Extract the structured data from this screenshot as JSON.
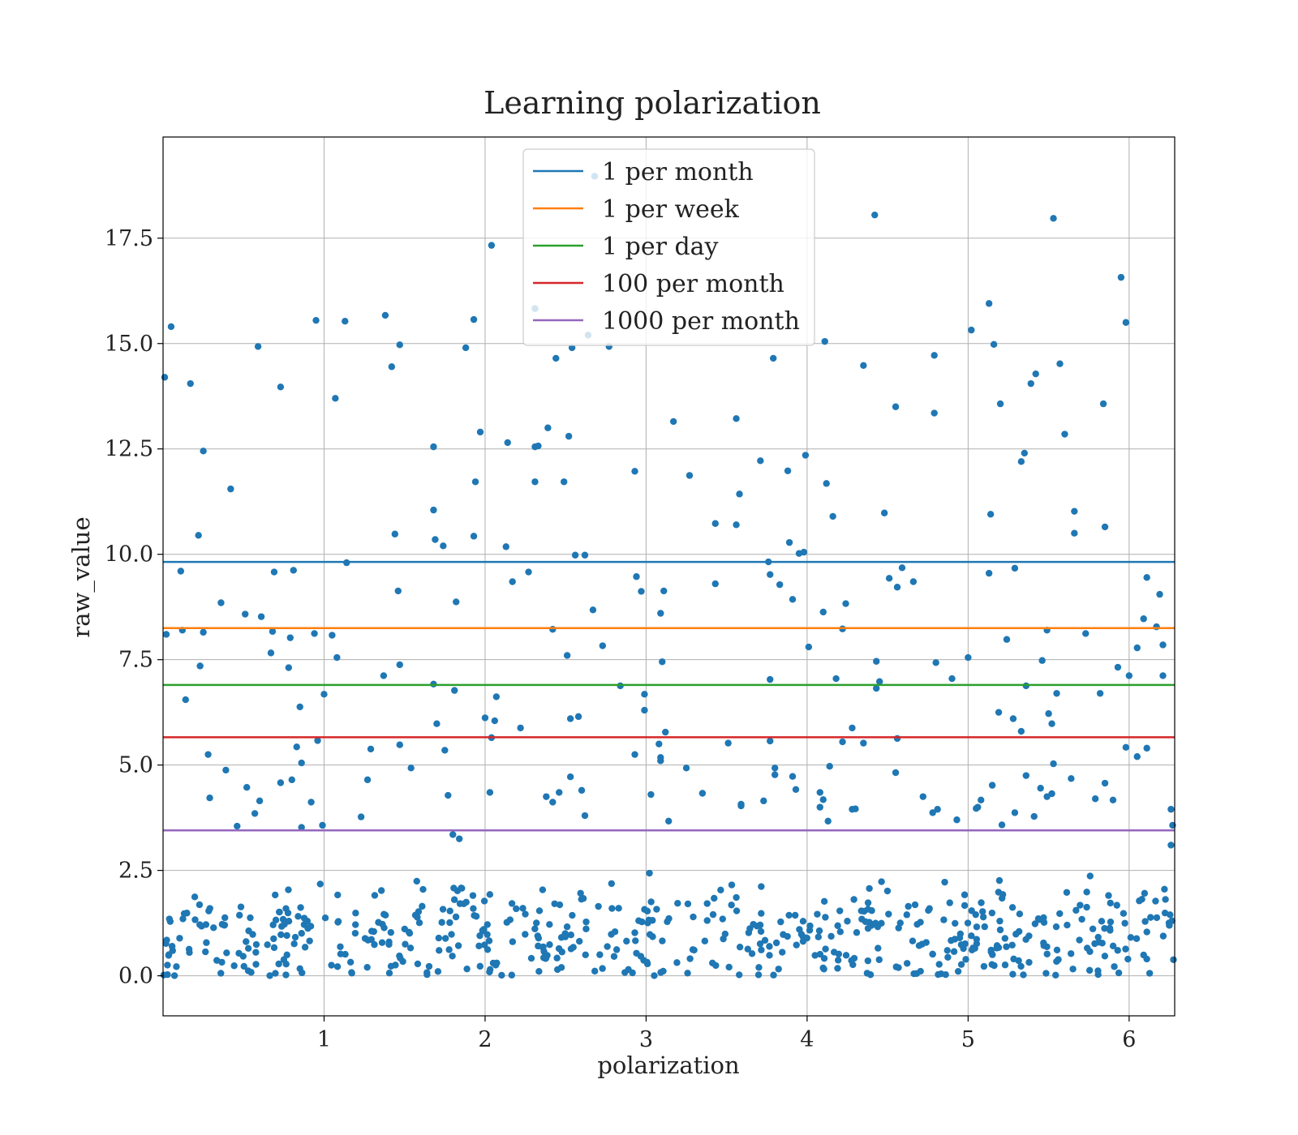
{
  "chart_data": {
    "type": "scatter",
    "title": "Learning polarization",
    "xlabel": "polarization",
    "ylabel": "raw_value",
    "xlim": [
      0,
      6.283
    ],
    "ylim": [
      -0.95,
      19.9
    ],
    "xticks": [
      1,
      2,
      3,
      4,
      5,
      6
    ],
    "yticks": [
      0.0,
      2.5,
      5.0,
      7.5,
      10.0,
      12.5,
      15.0,
      17.5
    ],
    "xtick_labels": [
      "1",
      "2",
      "3",
      "4",
      "5",
      "6"
    ],
    "ytick_labels": [
      "0.0",
      "2.5",
      "5.0",
      "7.5",
      "10.0",
      "12.5",
      "15.0",
      "17.5"
    ],
    "grid": true,
    "legend_position": "top-center",
    "marker_color": "#1f77b4",
    "hlines": [
      {
        "name": "1 per month",
        "y": 9.82,
        "color": "#1f77b4"
      },
      {
        "name": "1 per week",
        "y": 8.25,
        "color": "#ff7f0e"
      },
      {
        "name": "1 per day",
        "y": 6.9,
        "color": "#2ca02c"
      },
      {
        "name": "100 per month",
        "y": 5.66,
        "color": "#d62728"
      },
      {
        "name": "1000 per month",
        "y": 3.45,
        "color": "#9467bd"
      }
    ],
    "points": [
      [
        0.01,
        14.2
      ],
      [
        0.05,
        15.4
      ],
      [
        0.17,
        14.05
      ],
      [
        0.25,
        12.45
      ],
      [
        0.42,
        11.55
      ],
      [
        0.59,
        14.93
      ],
      [
        0.73,
        13.97
      ],
      [
        0.95,
        15.55
      ],
      [
        1.07,
        13.7
      ],
      [
        1.13,
        15.53
      ],
      [
        1.38,
        15.67
      ],
      [
        1.42,
        14.45
      ],
      [
        1.47,
        14.97
      ],
      [
        1.68,
        12.55
      ],
      [
        1.68,
        11.05
      ],
      [
        1.74,
        10.2
      ],
      [
        1.88,
        14.9
      ],
      [
        1.93,
        15.57
      ],
      [
        1.94,
        11.72
      ],
      [
        1.97,
        12.9
      ],
      [
        2.04,
        17.33
      ],
      [
        2.14,
        12.65
      ],
      [
        2.31,
        12.55
      ],
      [
        2.33,
        12.57
      ],
      [
        2.31,
        11.72
      ],
      [
        2.39,
        13.0
      ],
      [
        2.44,
        14.65
      ],
      [
        2.49,
        11.72
      ],
      [
        2.52,
        12.8
      ],
      [
        2.54,
        14.9
      ],
      [
        2.68,
        18.97
      ],
      [
        2.77,
        14.93
      ],
      [
        2.64,
        15.2
      ],
      [
        2.31,
        15.83
      ],
      [
        2.93,
        11.97
      ],
      [
        3.17,
        13.15
      ],
      [
        3.27,
        11.87
      ],
      [
        3.43,
        10.73
      ],
      [
        3.56,
        13.22
      ],
      [
        3.58,
        11.43
      ],
      [
        3.56,
        10.7
      ],
      [
        3.71,
        12.22
      ],
      [
        3.79,
        14.65
      ],
      [
        3.88,
        11.98
      ],
      [
        3.99,
        12.35
      ],
      [
        4.11,
        15.05
      ],
      [
        4.12,
        11.68
      ],
      [
        4.16,
        10.9
      ],
      [
        4.35,
        14.48
      ],
      [
        4.42,
        18.05
      ],
      [
        4.48,
        10.98
      ],
      [
        4.55,
        13.5
      ],
      [
        4.79,
        14.72
      ],
      [
        4.79,
        13.35
      ],
      [
        5.02,
        15.32
      ],
      [
        5.13,
        15.95
      ],
      [
        5.14,
        10.95
      ],
      [
        5.16,
        14.98
      ],
      [
        5.2,
        13.57
      ],
      [
        5.33,
        12.2
      ],
      [
        5.35,
        12.4
      ],
      [
        5.39,
        14.05
      ],
      [
        5.42,
        14.28
      ],
      [
        5.53,
        17.97
      ],
      [
        5.57,
        14.52
      ],
      [
        5.6,
        12.85
      ],
      [
        5.66,
        11.02
      ],
      [
        5.66,
        10.5
      ],
      [
        5.84,
        13.57
      ],
      [
        5.85,
        10.65
      ],
      [
        5.95,
        16.57
      ],
      [
        5.98,
        15.5
      ],
      [
        0.02,
        8.1
      ],
      [
        0.11,
        9.6
      ],
      [
        0.12,
        8.2
      ],
      [
        0.14,
        6.55
      ],
      [
        0.22,
        10.45
      ],
      [
        0.25,
        8.15
      ],
      [
        0.23,
        7.35
      ],
      [
        0.36,
        8.85
      ],
      [
        0.51,
        8.58
      ],
      [
        0.61,
        8.52
      ],
      [
        0.67,
        7.66
      ],
      [
        0.68,
        8.17
      ],
      [
        0.69,
        9.58
      ],
      [
        0.78,
        7.31
      ],
      [
        0.79,
        8.02
      ],
      [
        0.81,
        9.62
      ],
      [
        0.94,
        8.12
      ],
      [
        1.05,
        8.08
      ],
      [
        1.08,
        7.55
      ],
      [
        1.14,
        9.8
      ],
      [
        1.0,
        6.68
      ],
      [
        1.37,
        7.12
      ],
      [
        1.46,
        9.13
      ],
      [
        1.47,
        7.38
      ],
      [
        1.44,
        10.48
      ],
      [
        1.68,
        6.92
      ],
      [
        1.69,
        10.35
      ],
      [
        1.82,
        8.87
      ],
      [
        1.81,
        6.77
      ],
      [
        1.93,
        10.43
      ],
      [
        2.13,
        10.18
      ],
      [
        2.17,
        9.35
      ],
      [
        2.27,
        9.58
      ],
      [
        2.42,
        8.22
      ],
      [
        2.51,
        7.6
      ],
      [
        2.56,
        9.98
      ],
      [
        2.62,
        9.98
      ],
      [
        2.67,
        8.68
      ],
      [
        2.73,
        7.83
      ],
      [
        2.84,
        6.88
      ],
      [
        2.94,
        9.47
      ],
      [
        2.97,
        9.12
      ],
      [
        3.09,
        8.6
      ],
      [
        3.1,
        7.45
      ],
      [
        3.11,
        9.13
      ],
      [
        3.43,
        9.3
      ],
      [
        3.76,
        9.82
      ],
      [
        3.77,
        9.52
      ],
      [
        3.83,
        9.28
      ],
      [
        3.77,
        7.03
      ],
      [
        3.89,
        10.28
      ],
      [
        3.91,
        8.93
      ],
      [
        3.95,
        10.02
      ],
      [
        3.98,
        10.05
      ],
      [
        4.01,
        7.8
      ],
      [
        4.1,
        8.63
      ],
      [
        4.18,
        7.05
      ],
      [
        4.22,
        8.23
      ],
      [
        4.24,
        8.83
      ],
      [
        4.43,
        7.46
      ],
      [
        4.43,
        6.82
      ],
      [
        4.45,
        6.98
      ],
      [
        4.51,
        9.43
      ],
      [
        4.56,
        9.22
      ],
      [
        4.59,
        9.68
      ],
      [
        4.66,
        9.35
      ],
      [
        4.8,
        7.43
      ],
      [
        4.9,
        7.05
      ],
      [
        5.0,
        7.55
      ],
      [
        5.13,
        9.55
      ],
      [
        5.24,
        7.98
      ],
      [
        5.29,
        9.67
      ],
      [
        5.36,
        6.88
      ],
      [
        5.46,
        7.48
      ],
      [
        5.49,
        8.2
      ],
      [
        5.55,
        6.7
      ],
      [
        5.73,
        8.12
      ],
      [
        5.82,
        6.7
      ],
      [
        5.93,
        7.32
      ],
      [
        6.0,
        7.12
      ],
      [
        6.05,
        7.78
      ],
      [
        6.09,
        8.47
      ],
      [
        6.11,
        9.45
      ],
      [
        6.17,
        8.28
      ],
      [
        6.19,
        9.05
      ],
      [
        6.21,
        7.85
      ],
      [
        6.21,
        7.12
      ],
      [
        0.28,
        5.25
      ],
      [
        0.29,
        4.22
      ],
      [
        0.39,
        4.88
      ],
      [
        0.46,
        3.55
      ],
      [
        0.52,
        4.47
      ],
      [
        0.57,
        3.85
      ],
      [
        0.6,
        4.15
      ],
      [
        0.73,
        4.58
      ],
      [
        0.8,
        4.65
      ],
      [
        0.83,
        5.43
      ],
      [
        0.85,
        6.38
      ],
      [
        0.86,
        5.05
      ],
      [
        0.86,
        3.52
      ],
      [
        0.92,
        4.12
      ],
      [
        0.96,
        5.58
      ],
      [
        0.99,
        3.57
      ],
      [
        1.23,
        3.77
      ],
      [
        1.27,
        4.65
      ],
      [
        1.29,
        5.38
      ],
      [
        1.47,
        5.48
      ],
      [
        1.54,
        4.93
      ],
      [
        1.7,
        5.98
      ],
      [
        1.75,
        5.35
      ],
      [
        1.77,
        4.28
      ],
      [
        1.8,
        3.35
      ],
      [
        1.84,
        3.25
      ],
      [
        2.0,
        6.12
      ],
      [
        2.04,
        5.65
      ],
      [
        2.06,
        6.05
      ],
      [
        2.07,
        6.62
      ],
      [
        2.03,
        4.35
      ],
      [
        2.22,
        5.88
      ],
      [
        2.38,
        4.25
      ],
      [
        2.42,
        4.12
      ],
      [
        2.46,
        4.35
      ],
      [
        2.53,
        6.1
      ],
      [
        2.58,
        6.15
      ],
      [
        2.53,
        4.72
      ],
      [
        2.6,
        4.4
      ],
      [
        2.62,
        3.8
      ],
      [
        2.93,
        5.25
      ],
      [
        2.99,
        6.68
      ],
      [
        2.99,
        6.3
      ],
      [
        3.03,
        4.3
      ],
      [
        3.08,
        5.5
      ],
      [
        3.09,
        5.1
      ],
      [
        3.09,
        5.18
      ],
      [
        3.12,
        5.78
      ],
      [
        3.14,
        3.67
      ],
      [
        3.25,
        4.93
      ],
      [
        3.35,
        4.33
      ],
      [
        3.51,
        5.52
      ],
      [
        3.59,
        4.03
      ],
      [
        3.59,
        4.07
      ],
      [
        3.73,
        4.15
      ],
      [
        3.77,
        5.57
      ],
      [
        3.8,
        4.93
      ],
      [
        3.8,
        4.77
      ],
      [
        3.91,
        4.73
      ],
      [
        3.93,
        4.42
      ],
      [
        4.14,
        4.97
      ],
      [
        4.08,
        4.35
      ],
      [
        4.1,
        4.18
      ],
      [
        4.08,
        4.0
      ],
      [
        4.13,
        3.67
      ],
      [
        4.22,
        5.55
      ],
      [
        4.28,
        5.88
      ],
      [
        4.3,
        3.96
      ],
      [
        4.28,
        3.95
      ],
      [
        4.35,
        5.52
      ],
      [
        4.56,
        5.63
      ],
      [
        4.55,
        4.82
      ],
      [
        4.72,
        4.25
      ],
      [
        4.78,
        3.87
      ],
      [
        4.81,
        3.95
      ],
      [
        4.93,
        3.7
      ],
      [
        5.06,
        4.0
      ],
      [
        5.08,
        4.17
      ],
      [
        5.05,
        3.97
      ],
      [
        5.15,
        4.52
      ],
      [
        5.21,
        3.58
      ],
      [
        5.19,
        6.25
      ],
      [
        5.28,
        6.1
      ],
      [
        5.33,
        5.8
      ],
      [
        5.29,
        3.87
      ],
      [
        5.36,
        4.75
      ],
      [
        5.41,
        3.78
      ],
      [
        5.45,
        4.45
      ],
      [
        5.49,
        4.25
      ],
      [
        5.52,
        4.32
      ],
      [
        5.53,
        5.03
      ],
      [
        5.5,
        6.22
      ],
      [
        5.52,
        5.98
      ],
      [
        5.64,
        4.68
      ],
      [
        5.79,
        4.2
      ],
      [
        5.85,
        4.57
      ],
      [
        5.9,
        4.17
      ],
      [
        5.98,
        5.42
      ],
      [
        6.05,
        5.2
      ],
      [
        6.11,
        5.4
      ],
      [
        6.26,
        3.95
      ],
      [
        6.27,
        3.57
      ],
      [
        6.26,
        3.1
      ]
    ],
    "dense_band": {
      "x_range": [
        0,
        6.28
      ],
      "y_range": [
        0.0,
        2.5
      ],
      "count": 560
    }
  }
}
